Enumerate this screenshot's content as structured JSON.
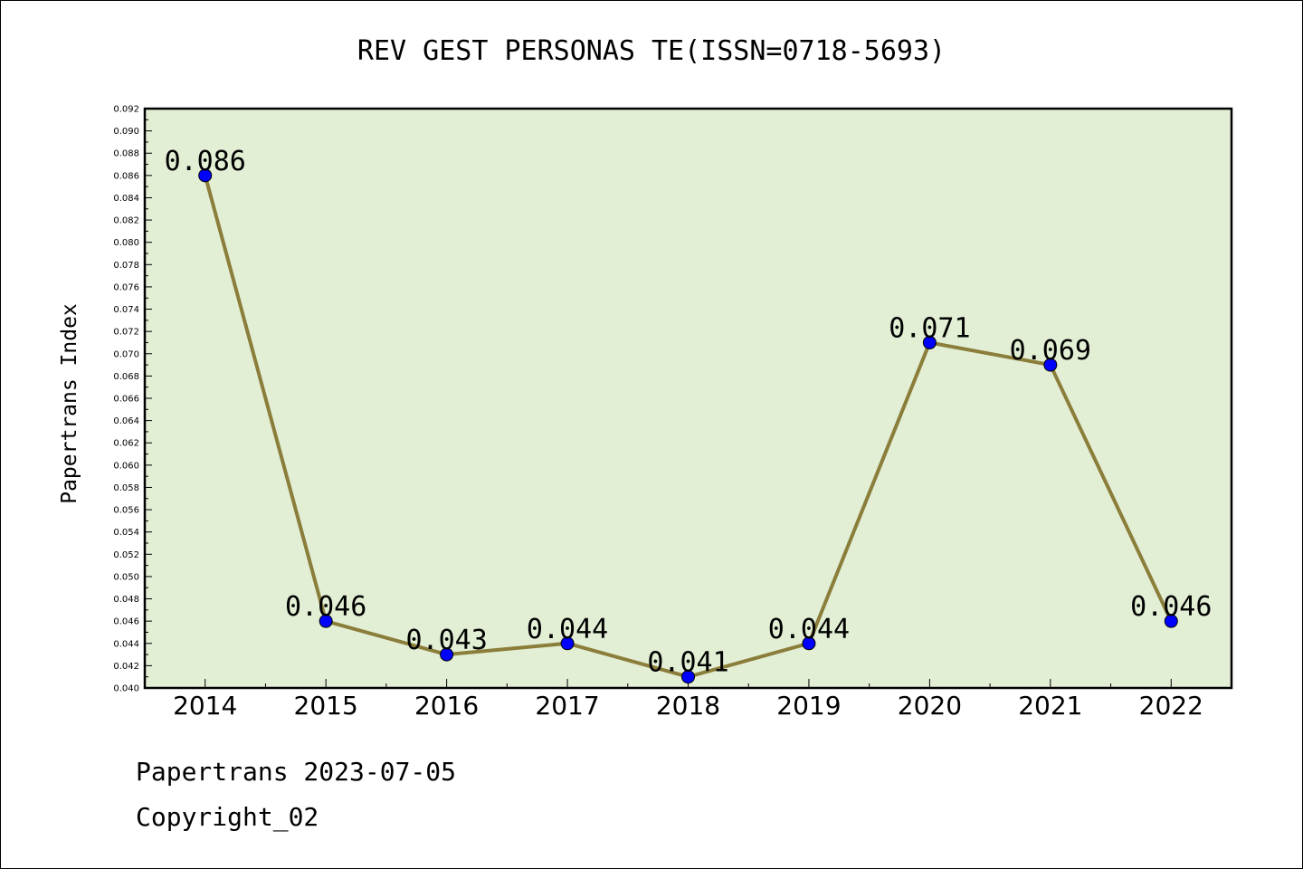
{
  "chart_data": {
    "type": "line",
    "title": "REV GEST PERSONAS TE(ISSN=0718-5693)",
    "xlabel": "",
    "ylabel": "Papertrans Index",
    "categories": [
      "2014",
      "2015",
      "2016",
      "2017",
      "2018",
      "2019",
      "2020",
      "2021",
      "2022"
    ],
    "values": [
      0.086,
      0.046,
      0.043,
      0.044,
      0.041,
      0.044,
      0.071,
      0.069,
      0.046
    ],
    "data_labels": [
      "0.086",
      "0.046",
      "0.043",
      "0.044",
      "0.041",
      "0.044",
      "0.071",
      "0.069",
      "0.046"
    ],
    "ylim": [
      0.04,
      0.092
    ],
    "yticks": [
      "0.040",
      "0.042",
      "0.044",
      "0.046",
      "0.048",
      "0.050",
      "0.052",
      "0.054",
      "0.056",
      "0.058",
      "0.060",
      "0.062",
      "0.064",
      "0.066",
      "0.068",
      "0.070",
      "0.072",
      "0.074",
      "0.076",
      "0.078",
      "0.080",
      "0.082",
      "0.084",
      "0.086",
      "0.088",
      "0.090",
      "0.092"
    ],
    "grid": false,
    "legend": "none",
    "colors": {
      "plot_background": "#e2efd5",
      "line": "#8b7d3a",
      "marker": "#0000ff"
    }
  },
  "footer": {
    "date_line": "Papertrans 2023-07-05",
    "copyright": "Copyright_02"
  }
}
